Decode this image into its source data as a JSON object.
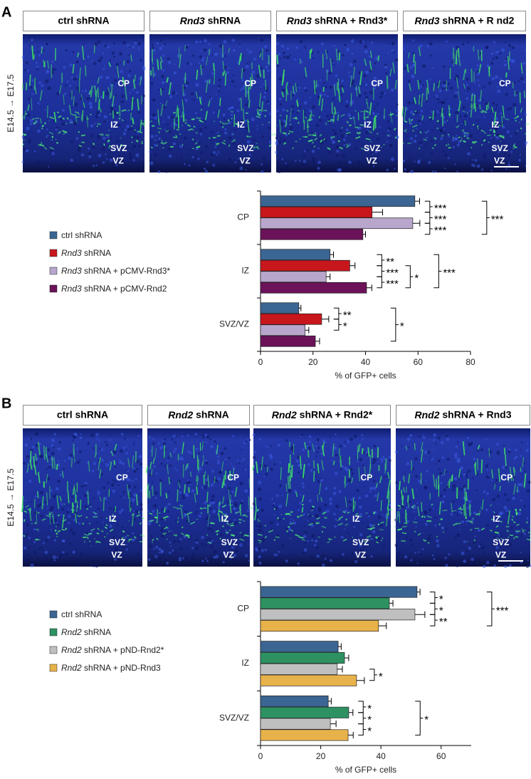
{
  "panels": [
    {
      "letter": "A",
      "time_label": "E14.5 → E17.5",
      "italic_term": "Rnd3",
      "images": [
        {
          "title": "ctrl shRNA",
          "labels": [
            "CP",
            "IZ",
            "SVZ",
            "VZ"
          ]
        },
        {
          "title": "Rnd3 shRNA",
          "labels": [
            "CP",
            "IZ",
            "SVZ",
            "VZ"
          ]
        },
        {
          "title": "Rnd3 shRNA + Rnd3*",
          "labels": [
            "CP",
            "IZ",
            "SVZ",
            "VZ"
          ]
        },
        {
          "title": "Rnd3 shRNA + R nd2",
          "labels": [
            "CP",
            "IZ",
            "SVZ",
            "VZ"
          ]
        }
      ]
    },
    {
      "letter": "B",
      "time_label": "E14.5 → E17.5",
      "italic_term": "Rnd2",
      "images": [
        {
          "title": "ctrl shRNA",
          "labels": [
            "CP",
            "IZ",
            "SVZ",
            "VZ"
          ]
        },
        {
          "title": "Rnd2 shRNA",
          "labels": [
            "CP",
            "IZ",
            "SVZ",
            "VZ"
          ]
        },
        {
          "title": "Rnd2 shRNA + Rnd2*",
          "labels": [
            "CP",
            "IZ",
            "SVZ",
            "VZ"
          ]
        },
        {
          "title": "Rnd2 shRNA + Rnd3",
          "labels": [
            "CP",
            "IZ",
            "SVZ",
            "VZ"
          ]
        }
      ]
    }
  ],
  "chart_data": [
    {
      "type": "bar",
      "orientation": "horizontal",
      "italic_term": "Rnd3",
      "categories": [
        "CP",
        "IZ",
        "SVZ/VZ"
      ],
      "series": [
        {
          "name": "ctrl shRNA",
          "color": "#3b6592",
          "values": [
            58.8,
            26.5,
            14.6
          ],
          "errors": [
            1.8,
            1.3,
            0.8
          ]
        },
        {
          "name": "Rnd3 shRNA",
          "color": "#c8161d",
          "values": [
            42.5,
            34,
            23.3
          ],
          "errors": [
            4,
            2,
            2.7
          ]
        },
        {
          "name": "Rnd3 shRNA + pCMV-Rnd3*",
          "color": "#b8a6cc",
          "values": [
            58,
            25,
            17
          ],
          "errors": [
            2.7,
            1.5,
            1.4
          ]
        },
        {
          "name": "Rnd3 shRNA + pCMV-Rnd2",
          "color": "#6b1259",
          "values": [
            39,
            40.4,
            20.9
          ],
          "errors": [
            1,
            2,
            1.6
          ]
        }
      ],
      "xlabel": "% of GFP+ cells",
      "xlim": [
        0,
        80
      ],
      "xticks": [
        0,
        20,
        40,
        60,
        80
      ],
      "significance": [
        {
          "category": 0,
          "from": 0,
          "to": 1,
          "label": "***"
        },
        {
          "category": 0,
          "from": 1,
          "to": 2,
          "label": "***"
        },
        {
          "category": 0,
          "from": 2,
          "to": 3,
          "label": "***"
        },
        {
          "category": 0,
          "from": 0,
          "to": 3,
          "label": "***"
        },
        {
          "category": 1,
          "from": 0,
          "to": 1,
          "label": "**"
        },
        {
          "category": 1,
          "from": 1,
          "to": 2,
          "label": "***"
        },
        {
          "category": 1,
          "from": 2,
          "to": 3,
          "label": "***"
        },
        {
          "category": 1,
          "from": 1,
          "to": 3,
          "label": "*"
        },
        {
          "category": 1,
          "from": 0,
          "to": 3,
          "label": "***"
        },
        {
          "category": 2,
          "from": 0,
          "to": 1,
          "label": "**"
        },
        {
          "category": 2,
          "from": 1,
          "to": 2,
          "label": "*"
        },
        {
          "category": 2,
          "from": 0,
          "to": 3,
          "label": "*"
        }
      ]
    },
    {
      "type": "bar",
      "orientation": "horizontal",
      "italic_term": "Rnd2",
      "categories": [
        "CP",
        "IZ",
        "SVZ/VZ"
      ],
      "series": [
        {
          "name": "ctrl shRNA",
          "color": "#3b6592",
          "values": [
            52,
            25.8,
            22.5
          ],
          "errors": [
            1,
            1,
            1
          ]
        },
        {
          "name": "Rnd2 shRNA",
          "color": "#2e9162",
          "values": [
            42.8,
            27.9,
            29.3
          ],
          "errors": [
            1.2,
            1.4,
            1.4
          ]
        },
        {
          "name": "Rnd2 shRNA + pND-Rnd2*",
          "color": "#bfbfbf",
          "values": [
            51.3,
            25.5,
            23.2
          ],
          "errors": [
            3.3,
            1.7,
            1.9
          ]
        },
        {
          "name": "Rnd2 shRNA + pND-Rnd3",
          "color": "#e8b24a",
          "values": [
            39.2,
            31.9,
            29.1
          ],
          "errors": [
            2.6,
            2.6,
            1.7
          ]
        }
      ],
      "xlabel": "% of GFP+ cells",
      "xlim": [
        0,
        70
      ],
      "xticks": [
        0,
        20,
        40,
        60
      ],
      "significance": [
        {
          "category": 0,
          "from": 0,
          "to": 1,
          "label": "*"
        },
        {
          "category": 0,
          "from": 1,
          "to": 2,
          "label": "*"
        },
        {
          "category": 0,
          "from": 2,
          "to": 3,
          "label": "**"
        },
        {
          "category": 0,
          "from": 0,
          "to": 3,
          "label": "***"
        },
        {
          "category": 1,
          "from": 2,
          "to": 3,
          "label": "*"
        },
        {
          "category": 2,
          "from": 0,
          "to": 1,
          "label": "*"
        },
        {
          "category": 2,
          "from": 1,
          "to": 2,
          "label": "*"
        },
        {
          "category": 2,
          "from": 2,
          "to": 3,
          "label": "*"
        },
        {
          "category": 2,
          "from": 0,
          "to": 3,
          "label": "*"
        }
      ]
    }
  ]
}
